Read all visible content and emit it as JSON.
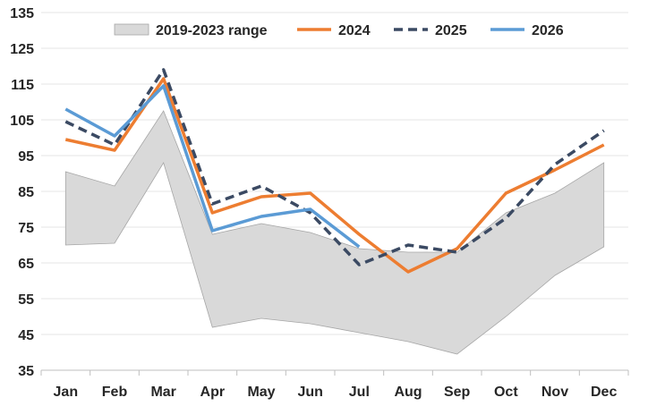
{
  "chart_data": {
    "type": "line",
    "categories": [
      "Jan",
      "Feb",
      "Mar",
      "Apr",
      "May",
      "Jun",
      "Jul",
      "Aug",
      "Sep",
      "Oct",
      "Nov",
      "Dec"
    ],
    "ylim": [
      35,
      135
    ],
    "yticks": [
      35,
      45,
      55,
      65,
      75,
      85,
      95,
      105,
      115,
      125,
      135
    ],
    "grid": true,
    "legend_position": "top",
    "range": {
      "name": "2019-2023 range",
      "low": [
        70,
        70.5,
        93,
        47,
        49.5,
        48,
        45.5,
        43,
        39.5,
        50,
        61.5,
        69.5
      ],
      "high": [
        90.5,
        86.5,
        107.5,
        73,
        76,
        73.5,
        69,
        68,
        68,
        79,
        84.5,
        93
      ],
      "color": "#d9d9d9",
      "border": "#a6a6a6"
    },
    "series": [
      {
        "name": "2024",
        "color": "#ed7d31",
        "dash": "solid",
        "values": [
          99.5,
          96.5,
          116.5,
          79,
          83.5,
          84.5,
          73,
          62.5,
          69,
          84.5,
          91,
          98
        ]
      },
      {
        "name": "2025",
        "color": "#3b4a63",
        "dash": "dashed",
        "values": [
          104.5,
          98,
          119,
          81.5,
          86.5,
          79,
          64.5,
          70,
          68,
          77.5,
          92.5,
          102
        ]
      },
      {
        "name": "2026",
        "color": "#5b9bd5",
        "dash": "solid",
        "values": [
          108,
          100.5,
          114.5,
          74,
          78,
          80,
          69.5,
          null,
          null,
          null,
          null,
          null
        ]
      }
    ]
  }
}
